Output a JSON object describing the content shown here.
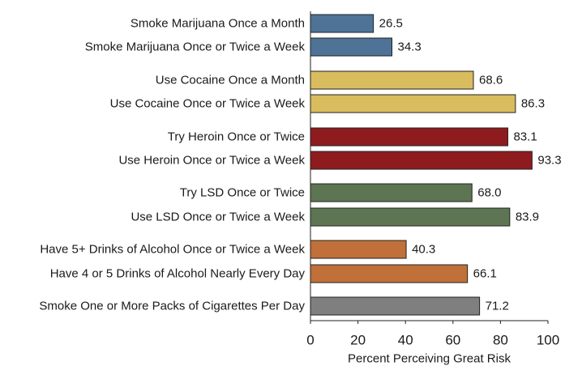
{
  "chart_data": {
    "type": "bar",
    "orientation": "horizontal",
    "title": "",
    "xlabel": "Percent Perceiving Great Risk",
    "ylabel": "",
    "xlim": [
      0,
      100
    ],
    "xticks": [
      "0",
      "20",
      "40",
      "60",
      "80",
      "100"
    ],
    "grid": false,
    "categories": [
      "Smoke Marijuana Once a Month",
      "Smoke Marijuana Once or Twice a Week",
      "Use Cocaine Once a Month",
      "Use Cocaine Once or Twice a Week",
      "Try Heroin Once or Twice",
      "Use Heroin Once or Twice a Week",
      "Try LSD Once or Twice",
      "Use LSD Once or Twice a Week",
      "Have 5+ Drinks of Alcohol Once or Twice a Week",
      "Have 4 or 5 Drinks of Alcohol Nearly Every Day",
      "Smoke One or More Packs of Cigarettes Per Day"
    ],
    "values": [
      26.5,
      34.3,
      68.6,
      86.3,
      83.1,
      93.3,
      68.0,
      83.9,
      40.3,
      66.1,
      71.2
    ],
    "value_labels": [
      "26.5",
      "34.3",
      "68.6",
      "86.3",
      "83.1",
      "93.3",
      "68.0",
      "83.9",
      "40.3",
      "66.1",
      "71.2"
    ],
    "groups": [
      {
        "substance": "marijuana",
        "indices": [
          0,
          1
        ],
        "color": "#4F7396"
      },
      {
        "substance": "cocaine",
        "indices": [
          2,
          3
        ],
        "color": "#D9BC5E"
      },
      {
        "substance": "heroin",
        "indices": [
          4,
          5
        ],
        "color": "#8E1C1F"
      },
      {
        "substance": "lsd",
        "indices": [
          6,
          7
        ],
        "color": "#5E7553"
      },
      {
        "substance": "alcohol",
        "indices": [
          8,
          9
        ],
        "color": "#C07038"
      },
      {
        "substance": "cigarettes",
        "indices": [
          10
        ],
        "color": "#7F7F7F"
      }
    ]
  }
}
